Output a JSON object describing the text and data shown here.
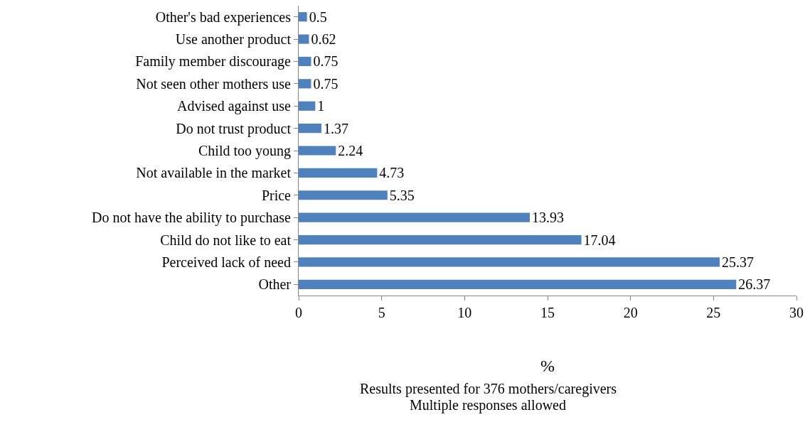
{
  "chart_data": {
    "type": "bar",
    "orientation": "horizontal",
    "categories": [
      "Other's bad experiences",
      "Use another product",
      "Family member discourage",
      "Not seen other mothers use",
      "Advised against use",
      "Do not trust product",
      "Child too young",
      "Not available in the market",
      "Price",
      "Do not have the ability to purchase",
      "Child do not like to eat",
      "Perceived lack of need",
      "Other"
    ],
    "values": [
      0.5,
      0.62,
      0.75,
      0.75,
      1,
      1.37,
      2.24,
      4.73,
      5.35,
      13.93,
      17.04,
      25.37,
      26.37
    ],
    "color": "#4f81bd",
    "xlim": [
      0,
      30
    ],
    "xticks": [
      0,
      5,
      10,
      15,
      20,
      25,
      30
    ],
    "grid": false,
    "data_labels": true,
    "xlabel": "%",
    "annotations": [
      "Results presented for 376 mothers/caregivers",
      "Multiple responses allowed"
    ]
  }
}
